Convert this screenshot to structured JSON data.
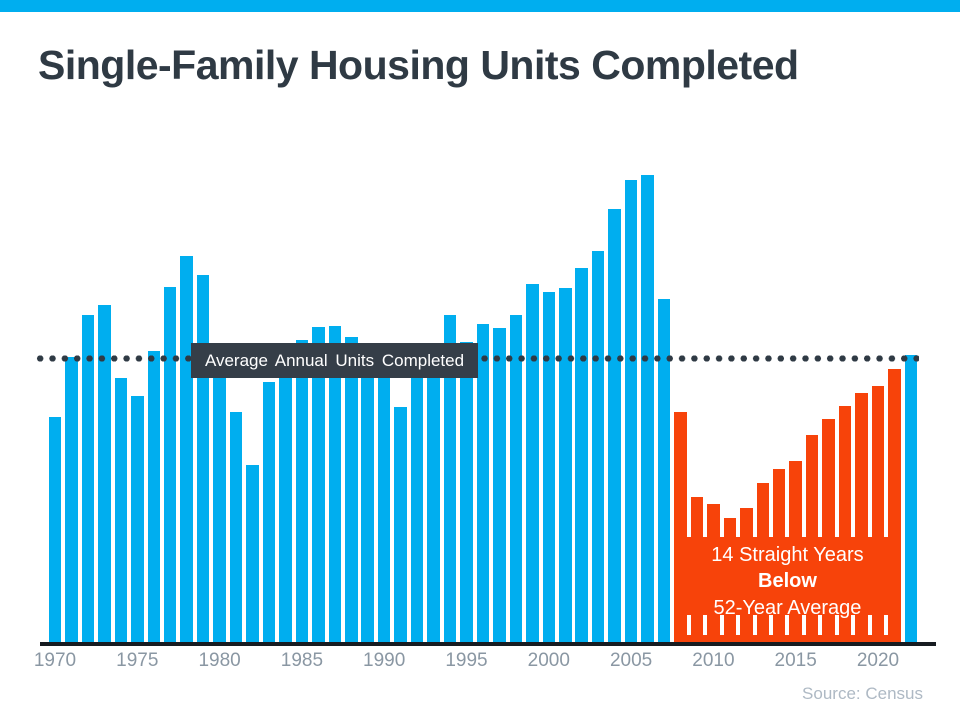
{
  "title": "Single-Family Housing Units Completed",
  "source": "Source: Census",
  "colors": {
    "banner_blue": "#00AEEF",
    "bar_blue": "#00AEEF",
    "bar_orange": "#F7430A",
    "slate_dark": "#2F3A44",
    "label_box_bg": "#353E48",
    "axis_dark": "#171C21",
    "tick_gray": "#8A97A3",
    "source_gray": "#AEB9C4",
    "white": "#ffffff"
  },
  "chart_data": {
    "type": "bar",
    "title": "Single-Family Housing Units Completed",
    "xlabel": "",
    "ylabel": "",
    "ylim": [
      0,
      1700
    ],
    "values_unit": "thousands of housing units (estimated from bar heights)",
    "grid": false,
    "years": [
      1970,
      1971,
      1972,
      1973,
      1974,
      1975,
      1976,
      1977,
      1978,
      1979,
      1980,
      1981,
      1982,
      1983,
      1984,
      1985,
      1986,
      1987,
      1988,
      1989,
      1990,
      1991,
      1992,
      1993,
      1994,
      1995,
      1996,
      1997,
      1998,
      1999,
      2000,
      2001,
      2002,
      2003,
      2004,
      2005,
      2006,
      2007,
      2008,
      2009,
      2010,
      2011,
      2012,
      2013,
      2014,
      2015,
      2016,
      2017,
      2018,
      2019,
      2020,
      2021,
      2022
    ],
    "values": [
      802,
      1014,
      1160,
      1197,
      940,
      875,
      1034,
      1258,
      1369,
      1301,
      957,
      819,
      632,
      924,
      1025,
      1072,
      1120,
      1123,
      1085,
      1026,
      966,
      838,
      964,
      1039,
      1160,
      1066,
      1129,
      1116,
      1160,
      1270,
      1242,
      1256,
      1325,
      1386,
      1532,
      1636,
      1654,
      1218,
      819,
      520,
      496,
      447,
      483,
      569,
      620,
      648,
      738,
      795,
      840,
      888,
      912,
      971,
      1019
    ],
    "bar_color_default": "#00AEEF",
    "bar_color_below_streak": "#F7430A",
    "below_streak_years": [
      2008,
      2021
    ],
    "average_line": {
      "label": "Average Annual Units Completed",
      "value": 1007,
      "style": "dotted",
      "color": "#2F3A44"
    },
    "x_ticks": [
      "1970",
      "1975",
      "1980",
      "1985",
      "1990",
      "1995",
      "2000",
      "2005",
      "2010",
      "2015",
      "2020"
    ],
    "annotation": {
      "lines": [
        "14 Straight Years",
        "Below",
        "52-Year Average"
      ]
    }
  }
}
